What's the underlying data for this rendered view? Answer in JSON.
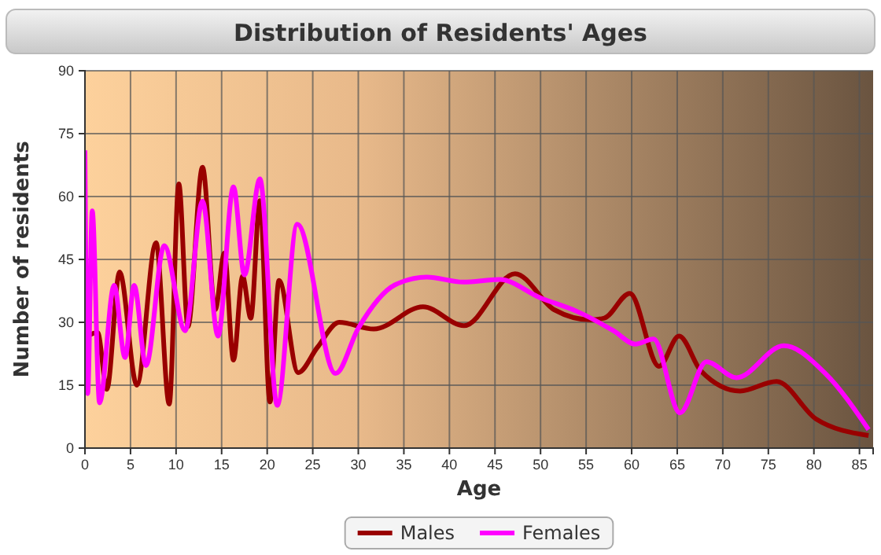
{
  "chart_data": {
    "type": "line",
    "title": "Distribution of Residents' Ages",
    "xlabel": "Age",
    "ylabel": "Number of residents",
    "xlim": [
      0,
      86.5
    ],
    "xticks": [
      0,
      5,
      10,
      15,
      20,
      25,
      30,
      35,
      40,
      45,
      50,
      55,
      60,
      65,
      70,
      75,
      80,
      85
    ],
    "ylim": [
      0,
      90
    ],
    "yticks": [
      0,
      15,
      30,
      45,
      60,
      75,
      90
    ],
    "grid": true,
    "legend": "bottom",
    "marker": "none",
    "line_style": "solid",
    "series": [
      {
        "name": "Males",
        "color": "#990000",
        "x": [
          0,
          0.5,
          1.4,
          2.4,
          3.8,
          5.7,
          7.8,
          9.25,
          10.3,
          11.3,
          12.9,
          14.3,
          15.3,
          16.3,
          17.3,
          18.2,
          19.2,
          20.3,
          21.3,
          23.4,
          25.5,
          27.9,
          31.7,
          37.1,
          41.6,
          47.2,
          51.5,
          55.5,
          57,
          59.8,
          63,
          65.2,
          67.6,
          71.9,
          75.9,
          80.2,
          86
        ],
        "values": [
          20,
          27,
          27.5,
          14,
          42,
          15,
          49,
          10.5,
          63,
          29,
          67,
          33,
          46.5,
          21,
          41,
          31,
          59,
          11,
          40,
          18,
          24,
          30,
          28.4,
          33.7,
          29.2,
          41.6,
          33,
          30.6,
          31,
          36.9,
          19.5,
          26.7,
          18.4,
          13.6,
          15.9,
          7,
          3
        ]
      },
      {
        "name": "Females",
        "color": "#ff00ff",
        "x": [
          0,
          0.3,
          0.8,
          1.6,
          3.2,
          4.4,
          5.4,
          6.7,
          8.7,
          11,
          12.9,
          14.6,
          16.3,
          17.5,
          19.2,
          21.1,
          23.3,
          27.5,
          30,
          34,
          37.5,
          41.5,
          45.5,
          50,
          54,
          58,
          60.4,
          62.4,
          65.3,
          68.2,
          71.5,
          76.7,
          81.3,
          86
        ],
        "values": [
          71,
          13,
          56.6,
          10.8,
          38.8,
          21.6,
          38.8,
          19.7,
          48.3,
          28,
          58.9,
          26.7,
          62.3,
          41.3,
          64.2,
          10.2,
          53.4,
          17.8,
          28.6,
          38.9,
          40.8,
          39.6,
          40.2,
          35.8,
          32.6,
          28,
          24.8,
          26,
          8.4,
          20.6,
          16.8,
          24.4,
          17.7,
          4.4
        ]
      }
    ]
  }
}
